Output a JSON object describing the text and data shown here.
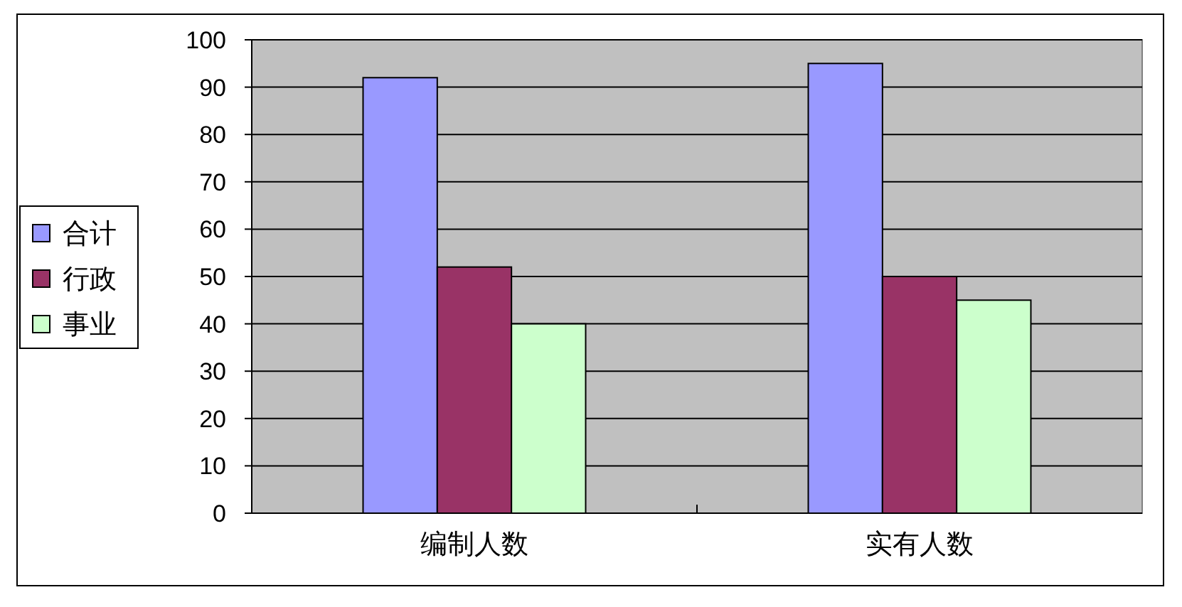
{
  "chart_data": {
    "type": "bar",
    "categories": [
      "编制人数",
      "实有人数"
    ],
    "series": [
      {
        "name": "合计",
        "color": "#9999ff",
        "values": [
          92,
          95
        ]
      },
      {
        "name": "行政",
        "color": "#993366",
        "values": [
          52,
          50
        ]
      },
      {
        "name": "事业",
        "color": "#ccffcc",
        "values": [
          40,
          45
        ]
      }
    ],
    "ylim": [
      0,
      100
    ],
    "yticks": [
      0,
      10,
      20,
      30,
      40,
      50,
      60,
      70,
      80,
      90,
      100
    ],
    "grid": "y",
    "legend": "left"
  }
}
